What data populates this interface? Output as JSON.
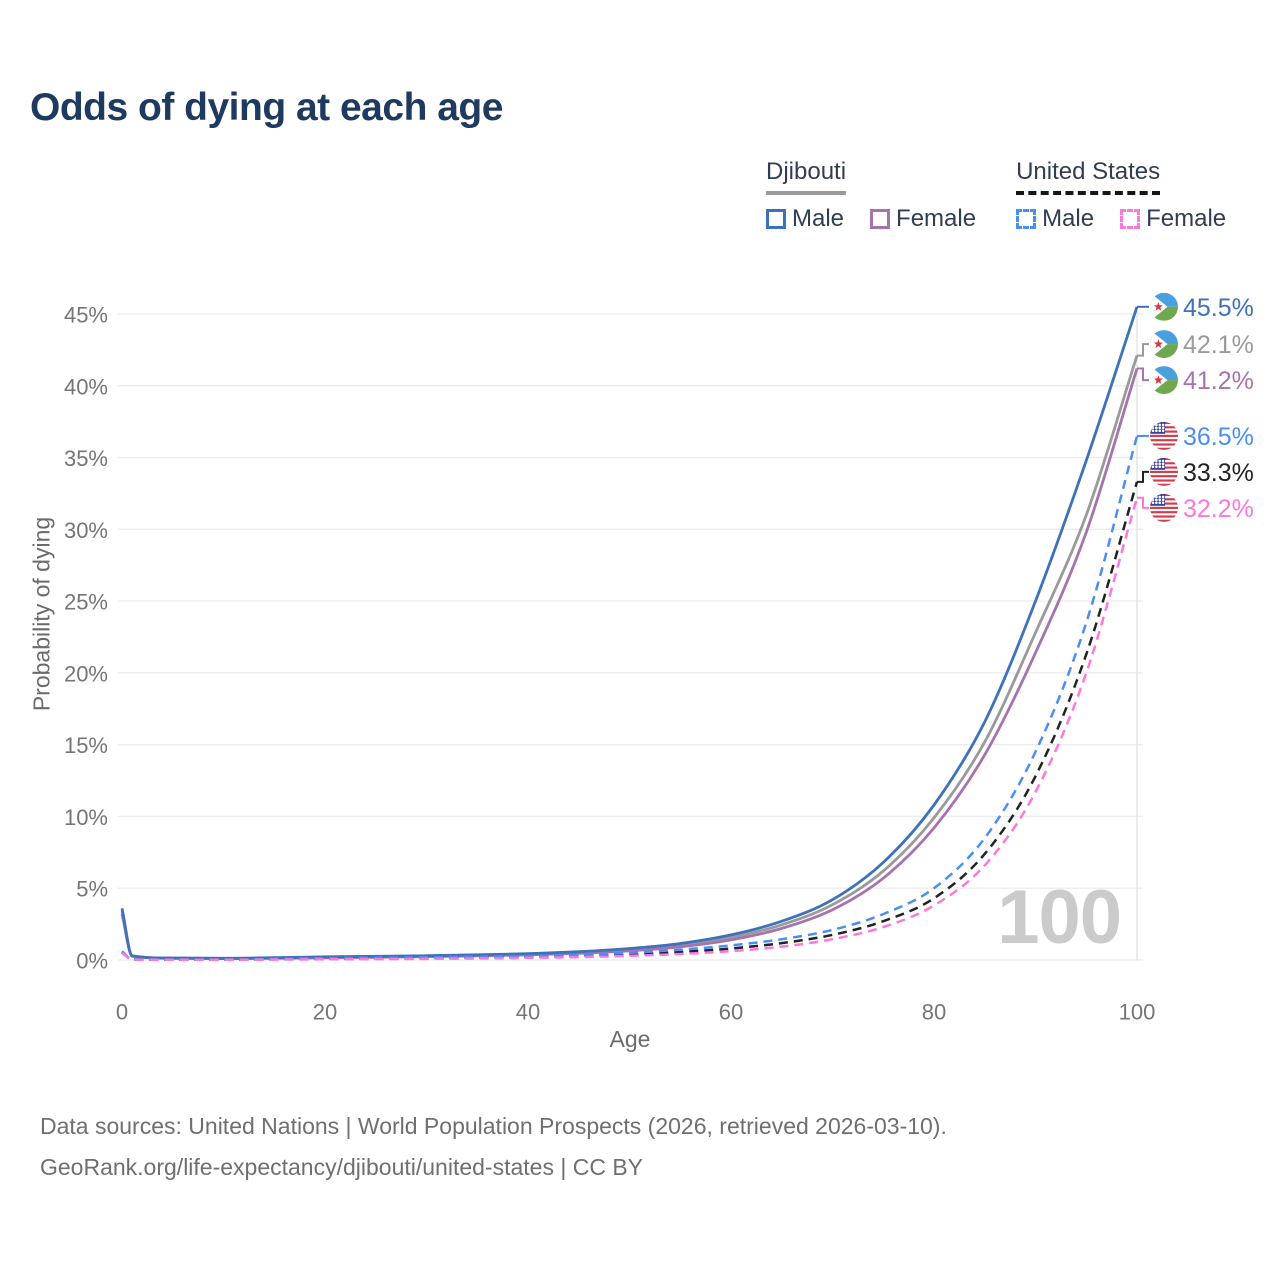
{
  "title": "Odds of dying at each age",
  "legend": {
    "groups": [
      {
        "id": "djibouti",
        "label": "Djibouti",
        "line_style": "solid",
        "line_color": "#9a9a9a",
        "items": [
          {
            "id": "djibouti-male",
            "label": "Male",
            "color": "#3e72b8",
            "style": "solid"
          },
          {
            "id": "djibouti-female",
            "label": "Female",
            "color": "#a673b0",
            "style": "solid"
          }
        ]
      },
      {
        "id": "united-states",
        "label": "United States",
        "line_style": "dashed",
        "line_color": "#161616",
        "items": [
          {
            "id": "us-male",
            "label": "Male",
            "color": "#4a8ef5",
            "style": "dashed"
          },
          {
            "id": "us-female",
            "label": "Female",
            "color": "#ff77d8",
            "style": "dashed"
          }
        ]
      }
    ]
  },
  "chart_data": {
    "type": "line",
    "title": "Odds of dying at each age",
    "xlabel": "Age",
    "ylabel": "Probability of dying",
    "xlim": [
      0,
      100
    ],
    "ylim": [
      0,
      45.5
    ],
    "x_ticks": [
      0,
      20,
      40,
      60,
      80,
      100
    ],
    "y_ticks": [
      "0%",
      "5%",
      "10%",
      "15%",
      "20%",
      "25%",
      "30%",
      "35%",
      "40%",
      "45%"
    ],
    "grid": "horizontal",
    "legend_position": "top-right",
    "hover_age_label": "100",
    "ages": [
      0,
      1,
      5,
      10,
      15,
      20,
      25,
      30,
      35,
      40,
      45,
      50,
      55,
      60,
      65,
      70,
      75,
      80,
      85,
      90,
      95,
      100
    ],
    "series": [
      {
        "id": "djibouti-male",
        "country": "Djibouti",
        "sex": "Male",
        "style": "solid",
        "color": "#3e72b8",
        "flag": "dj",
        "end_label": "45.5%",
        "end_value": 45.5,
        "values": [
          3.6,
          0.3,
          0.14,
          0.12,
          0.16,
          0.22,
          0.26,
          0.3,
          0.36,
          0.44,
          0.58,
          0.8,
          1.15,
          1.75,
          2.7,
          4.2,
          6.8,
          10.8,
          16.6,
          25.0,
          34.8,
          45.5
        ]
      },
      {
        "id": "djibouti-both",
        "country": "Djibouti",
        "sex": "Both sexes",
        "style": "solid",
        "color": "#9a9a9a",
        "flag": "dj",
        "end_label": "42.1%",
        "end_value": 42.1,
        "values": [
          3.4,
          0.28,
          0.13,
          0.11,
          0.14,
          0.19,
          0.23,
          0.27,
          0.32,
          0.4,
          0.52,
          0.72,
          1.03,
          1.57,
          2.45,
          3.85,
          6.2,
          9.9,
          15.2,
          22.8,
          31.0,
          42.1
        ]
      },
      {
        "id": "djibouti-female",
        "country": "Djibouti",
        "sex": "Female",
        "style": "solid",
        "color": "#a673b0",
        "flag": "dj",
        "end_label": "41.2%",
        "end_value": 41.2,
        "values": [
          3.2,
          0.26,
          0.12,
          0.1,
          0.12,
          0.15,
          0.19,
          0.23,
          0.29,
          0.36,
          0.47,
          0.64,
          0.92,
          1.4,
          2.2,
          3.5,
          5.7,
          9.2,
          14.3,
          21.4,
          29.8,
          41.2
        ]
      },
      {
        "id": "us-male",
        "country": "United States",
        "sex": "Male",
        "style": "dashed",
        "color": "#4a8ef5",
        "flag": "us",
        "end_label": "36.5%",
        "end_value": 36.5,
        "values": [
          0.6,
          0.04,
          0.02,
          0.018,
          0.07,
          0.13,
          0.16,
          0.19,
          0.23,
          0.28,
          0.36,
          0.5,
          0.72,
          1.02,
          1.45,
          2.1,
          3.2,
          5.0,
          8.5,
          14.5,
          23.5,
          36.5
        ]
      },
      {
        "id": "us-both",
        "country": "United States",
        "sex": "Both sexes",
        "style": "dashed",
        "color": "#222222",
        "flag": "us",
        "end_label": "33.3%",
        "end_value": 33.3,
        "values": [
          0.55,
          0.035,
          0.017,
          0.015,
          0.05,
          0.09,
          0.11,
          0.14,
          0.17,
          0.21,
          0.28,
          0.39,
          0.56,
          0.8,
          1.18,
          1.75,
          2.7,
          4.3,
          7.4,
          12.8,
          21.3,
          33.3
        ]
      },
      {
        "id": "us-female",
        "country": "United States",
        "sex": "Female",
        "style": "dashed",
        "color": "#ff77d8",
        "flag": "us",
        "end_label": "32.2%",
        "end_value": 32.2,
        "values": [
          0.5,
          0.03,
          0.014,
          0.012,
          0.03,
          0.05,
          0.06,
          0.08,
          0.11,
          0.15,
          0.2,
          0.29,
          0.42,
          0.62,
          0.93,
          1.45,
          2.3,
          3.8,
          6.6,
          11.7,
          20.0,
          32.2
        ]
      }
    ],
    "flag_colors": {
      "dj": {
        "blue": "#4aa0dd",
        "green": "#6fa84e",
        "star": "#e03440",
        "white": "#ffffff"
      },
      "us": {
        "red": "#d23c4b",
        "blue": "#333f9e",
        "white": "#ffffff"
      }
    }
  },
  "footer": {
    "line1": "Data sources: United Nations | World Population Prospects (2026, retrieved 2026-03-10).",
    "line2": "GeoRank.org/life-expectancy/djibouti/united-states | CC BY"
  }
}
